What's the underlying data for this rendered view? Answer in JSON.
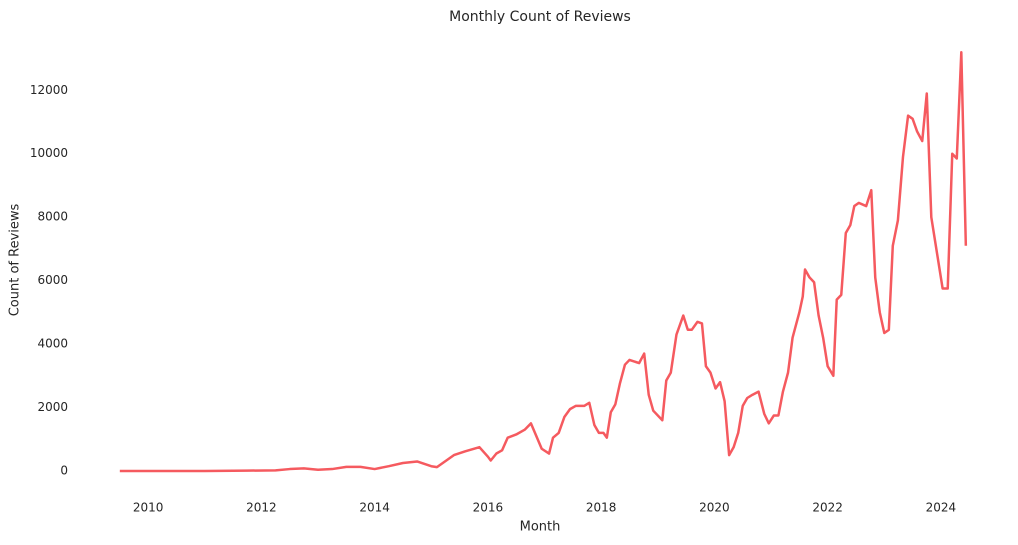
{
  "chart_data": {
    "type": "line",
    "title": "Monthly Count of Reviews",
    "x_label": "Month",
    "y_label": "Count of Reviews",
    "color": "#f55a5f",
    "grid": false,
    "xlim": [
      2009.15,
      2024.69
    ],
    "xticks": [
      2010,
      2012,
      2014,
      2016,
      2018,
      2020,
      2022,
      2024
    ],
    "ylim": [
      -600,
      13900
    ],
    "yticks": [
      0,
      2000,
      4000,
      6000,
      8000,
      10000,
      12000
    ],
    "x": [
      2009.5,
      2010,
      2011,
      2011.75,
      2012.25,
      2012.5,
      2012.75,
      2013,
      2013.25,
      2013.5,
      2013.75,
      2014,
      2014.25,
      2014.5,
      2014.75,
      2015,
      2015.1,
      2015.4,
      2015.6,
      2015.85,
      2016,
      2016.05,
      2016.15,
      2016.25,
      2016.35,
      2016.5,
      2016.65,
      2016.76,
      2016.95,
      2017.08,
      2017.15,
      2017.25,
      2017.35,
      2017.45,
      2017.55,
      2017.7,
      2017.79,
      2017.88,
      2017.96,
      2018.04,
      2018.1,
      2018.17,
      2018.25,
      2018.33,
      2018.42,
      2018.5,
      2018.67,
      2018.76,
      2018.84,
      2018.92,
      2019.08,
      2019.15,
      2019.23,
      2019.33,
      2019.45,
      2019.53,
      2019.6,
      2019.7,
      2019.78,
      2019.85,
      2019.93,
      2020.02,
      2020.1,
      2020.18,
      2020.26,
      2020.34,
      2020.42,
      2020.5,
      2020.58,
      2020.67,
      2020.78,
      2020.88,
      2020.96,
      2021.05,
      2021.13,
      2021.21,
      2021.3,
      2021.38,
      2021.5,
      2021.56,
      2021.6,
      2021.68,
      2021.76,
      2021.84,
      2021.92,
      2022.0,
      2022.1,
      2022.16,
      2022.24,
      2022.32,
      2022.4,
      2022.47,
      2022.55,
      2022.68,
      2022.77,
      2022.84,
      2022.92,
      2023.0,
      2023.08,
      2023.15,
      2023.24,
      2023.33,
      2023.42,
      2023.5,
      2023.58,
      2023.67,
      2023.75,
      2023.83,
      2024.03,
      2024.12,
      2024.2,
      2024.28,
      2024.36,
      2024.44
    ],
    "values": [
      0,
      0,
      0,
      10,
      20,
      60,
      80,
      40,
      60,
      130,
      130,
      60,
      150,
      250,
      300,
      150,
      120,
      500,
      620,
      750,
      450,
      330,
      550,
      650,
      1050,
      1150,
      1300,
      1500,
      700,
      550,
      1050,
      1200,
      1700,
      1950,
      2050,
      2050,
      2150,
      1450,
      1200,
      1200,
      1050,
      1850,
      2100,
      2750,
      3350,
      3500,
      3400,
      3700,
      2400,
      1900,
      1600,
      2850,
      3100,
      4300,
      4900,
      4450,
      4450,
      4700,
      4650,
      3300,
      3100,
      2600,
      2800,
      2200,
      500,
      750,
      1200,
      2050,
      2300,
      2400,
      2500,
      1800,
      1500,
      1750,
      1750,
      2500,
      3100,
      4200,
      5000,
      5500,
      6350,
      6100,
      5950,
      4900,
      4200,
      3300,
      3000,
      5400,
      5550,
      7500,
      7750,
      8350,
      8450,
      8350,
      8850,
      6100,
      5000,
      4350,
      4450,
      7100,
      7900,
      9900,
      11200,
      11100,
      10700,
      10400,
      11900,
      8000,
      5750,
      5750,
      10000,
      9850,
      13200,
      7100
    ]
  }
}
